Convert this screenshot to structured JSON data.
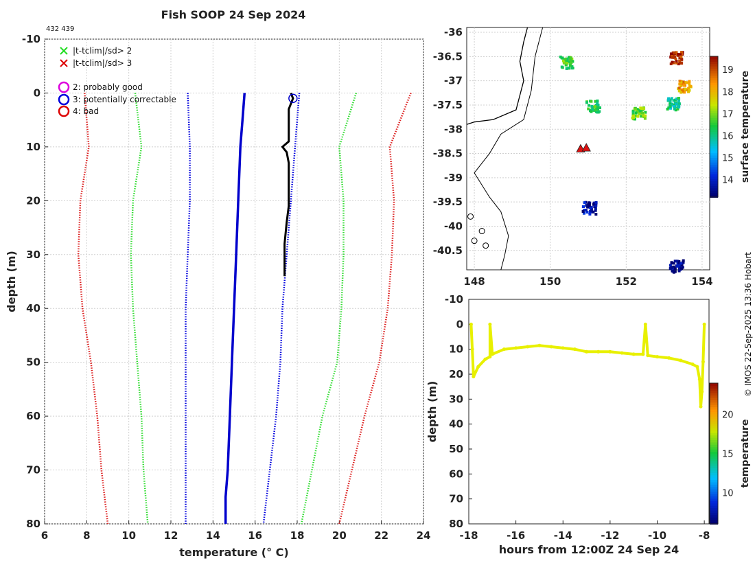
{
  "title": "Fish SOOP 24 Sep 2024",
  "id_label": "432 439",
  "copyright": "© IMOS 22-Sep-2025 13:36 Hobart",
  "legend": [
    {
      "marker": "x",
      "color": "#22dd22",
      "label": "|t-tclim|/sd> 2"
    },
    {
      "marker": "x",
      "color": "#dd0000",
      "label": "|t-tclim|/sd> 3"
    },
    {
      "marker": "o",
      "color": "#dd00dd",
      "label": "2: probably good"
    },
    {
      "marker": "o",
      "color": "#0000dd",
      "label": "3: potentially correctable"
    },
    {
      "marker": "o",
      "color": "#dd0000",
      "label": "4: bad"
    }
  ],
  "colors": {
    "green": "#33dd33",
    "red": "#dd2222",
    "blue": "#0000dd",
    "profile": "#0000cc",
    "track": "#e8f000"
  },
  "chart_data": [
    {
      "name": "profile",
      "type": "line",
      "xlabel": "temperature (° C)",
      "ylabel": "depth (m)",
      "xlim": [
        6,
        24
      ],
      "ylim": [
        -10,
        80
      ],
      "xticks": [
        6,
        8,
        10,
        12,
        14,
        16,
        18,
        20,
        22,
        24
      ],
      "yticks": [
        -10,
        0,
        10,
        20,
        30,
        40,
        50,
        60,
        70,
        80
      ],
      "series": [
        {
          "name": "clim -3sd",
          "style": "dotted-red",
          "points": [
            [
              7.9,
              0
            ],
            [
              8.1,
              10
            ],
            [
              7.7,
              20
            ],
            [
              7.6,
              30
            ],
            [
              7.8,
              40
            ],
            [
              8.2,
              50
            ],
            [
              8.5,
              60
            ],
            [
              8.7,
              70
            ],
            [
              9.0,
              80
            ]
          ]
        },
        {
          "name": "clim -2sd",
          "style": "dotted-green",
          "points": [
            [
              10.3,
              0
            ],
            [
              10.6,
              10
            ],
            [
              10.2,
              20
            ],
            [
              10.1,
              30
            ],
            [
              10.2,
              40
            ],
            [
              10.4,
              50
            ],
            [
              10.6,
              60
            ],
            [
              10.7,
              70
            ],
            [
              10.9,
              80
            ]
          ]
        },
        {
          "name": "clim -1sd",
          "style": "dotted-blue",
          "points": [
            [
              12.8,
              0
            ],
            [
              12.9,
              10
            ],
            [
              12.9,
              20
            ],
            [
              12.8,
              30
            ],
            [
              12.7,
              40
            ],
            [
              12.7,
              50
            ],
            [
              12.7,
              60
            ],
            [
              12.7,
              70
            ],
            [
              12.7,
              80
            ]
          ]
        },
        {
          "name": "climatology mean",
          "style": "solid-blue",
          "points": [
            [
              15.5,
              0
            ],
            [
              15.4,
              5
            ],
            [
              15.3,
              10
            ],
            [
              15.2,
              20
            ],
            [
              15.1,
              30
            ],
            [
              15.0,
              40
            ],
            [
              14.9,
              50
            ],
            [
              14.8,
              60
            ],
            [
              14.7,
              70
            ],
            [
              14.6,
              75
            ],
            [
              14.6,
              80
            ]
          ]
        },
        {
          "name": "clim +1sd",
          "style": "dotted-blue",
          "points": [
            [
              18.1,
              0
            ],
            [
              17.9,
              10
            ],
            [
              17.7,
              20
            ],
            [
              17.5,
              30
            ],
            [
              17.3,
              40
            ],
            [
              17.2,
              50
            ],
            [
              17.0,
              60
            ],
            [
              16.7,
              70
            ],
            [
              16.4,
              80
            ]
          ]
        },
        {
          "name": "clim +2sd",
          "style": "dotted-green",
          "points": [
            [
              20.8,
              0
            ],
            [
              20.0,
              10
            ],
            [
              20.2,
              20
            ],
            [
              20.2,
              30
            ],
            [
              20.1,
              40
            ],
            [
              19.9,
              50
            ],
            [
              19.2,
              60
            ],
            [
              18.7,
              70
            ],
            [
              18.2,
              80
            ]
          ]
        },
        {
          "name": "clim +3sd",
          "style": "dotted-red",
          "points": [
            [
              23.4,
              0
            ],
            [
              22.4,
              10
            ],
            [
              22.6,
              20
            ],
            [
              22.5,
              30
            ],
            [
              22.3,
              40
            ],
            [
              21.9,
              50
            ],
            [
              21.2,
              60
            ],
            [
              20.6,
              70
            ],
            [
              20.0,
              80
            ]
          ]
        },
        {
          "name": "observed profile",
          "style": "solid-black",
          "points": [
            [
              17.7,
              0
            ],
            [
              17.8,
              1
            ],
            [
              17.6,
              3
            ],
            [
              17.6,
              6
            ],
            [
              17.6,
              9
            ],
            [
              17.3,
              10
            ],
            [
              17.5,
              11
            ],
            [
              17.6,
              13
            ],
            [
              17.6,
              17
            ],
            [
              17.6,
              21
            ],
            [
              17.5,
              24
            ],
            [
              17.4,
              28
            ],
            [
              17.4,
              31
            ],
            [
              17.4,
              34
            ]
          ]
        }
      ],
      "flag_markers": [
        {
          "flag": 3,
          "t": 17.8,
          "d": 1
        }
      ]
    },
    {
      "name": "map",
      "type": "heatmap",
      "xlim": [
        147.8,
        154.2
      ],
      "ylim": [
        -40.9,
        -35.9
      ],
      "xticks": [
        148,
        150,
        152,
        154
      ],
      "yticks": [
        -36,
        -36.5,
        -37,
        -37.5,
        -38,
        -38.5,
        -39,
        -39.5,
        -40,
        -40.5
      ],
      "colorbar": {
        "label": "surface temperature",
        "range": [
          13.2,
          19.6
        ],
        "ticks": [
          14,
          15,
          16,
          17,
          18,
          19
        ]
      },
      "patches": [
        {
          "lon": 150.4,
          "lat": -36.6,
          "sst": 16.6
        },
        {
          "lon": 151.1,
          "lat": -37.5,
          "sst": 16.4
        },
        {
          "lon": 152.3,
          "lat": -37.65,
          "sst": 16.8
        },
        {
          "lon": 153.5,
          "lat": -37.1,
          "sst": 18.2
        },
        {
          "lon": 153.2,
          "lat": -37.45,
          "sst": 16.0
        },
        {
          "lon": 153.3,
          "lat": -36.5,
          "sst": 19.3
        },
        {
          "lon": 151.0,
          "lat": -39.6,
          "sst": 13.7
        },
        {
          "lon": 153.3,
          "lat": -40.8,
          "sst": 13.4
        }
      ],
      "station_markers": [
        {
          "lon": 150.8,
          "lat": -38.4
        },
        {
          "lon": 150.95,
          "lat": -38.38
        }
      ]
    },
    {
      "name": "time_depth",
      "type": "scatter",
      "xlabel": "hours from 12:00Z 24 Sep 24",
      "ylabel": "depth (m)",
      "xlim": [
        -18,
        -7.8
      ],
      "ylim": [
        -10,
        80
      ],
      "xticks": [
        -18,
        -16,
        -14,
        -12,
        -10,
        -8
      ],
      "yticks": [
        -10,
        0,
        10,
        20,
        30,
        40,
        50,
        60,
        70,
        80
      ],
      "colorbar": {
        "label": "temperature",
        "range": [
          6,
          24
        ],
        "ticks": [
          10,
          15,
          20
        ]
      },
      "track_color_temp": 17.5,
      "points": [
        [
          -17.9,
          0
        ],
        [
          -17.85,
          10
        ],
        [
          -17.8,
          21
        ],
        [
          -17.6,
          17
        ],
        [
          -17.3,
          14
        ],
        [
          -17.1,
          13
        ],
        [
          -17.1,
          0
        ],
        [
          -17.0,
          12
        ],
        [
          -16.5,
          10
        ],
        [
          -16.0,
          9.5
        ],
        [
          -15.5,
          9
        ],
        [
          -15,
          8.5
        ],
        [
          -14.5,
          9
        ],
        [
          -14,
          9.5
        ],
        [
          -13.5,
          10
        ],
        [
          -13,
          11
        ],
        [
          -12.5,
          11
        ],
        [
          -12,
          11
        ],
        [
          -11.5,
          11.5
        ],
        [
          -11,
          12
        ],
        [
          -10.6,
          12
        ],
        [
          -10.5,
          0
        ],
        [
          -10.4,
          12.5
        ],
        [
          -10,
          13
        ],
        [
          -9.5,
          13.5
        ],
        [
          -9,
          14.5
        ],
        [
          -8.5,
          16
        ],
        [
          -8.3,
          17
        ],
        [
          -8.2,
          22
        ],
        [
          -8.15,
          33
        ],
        [
          -8.1,
          27
        ],
        [
          -8.05,
          15
        ],
        [
          -8.0,
          0
        ]
      ]
    }
  ]
}
